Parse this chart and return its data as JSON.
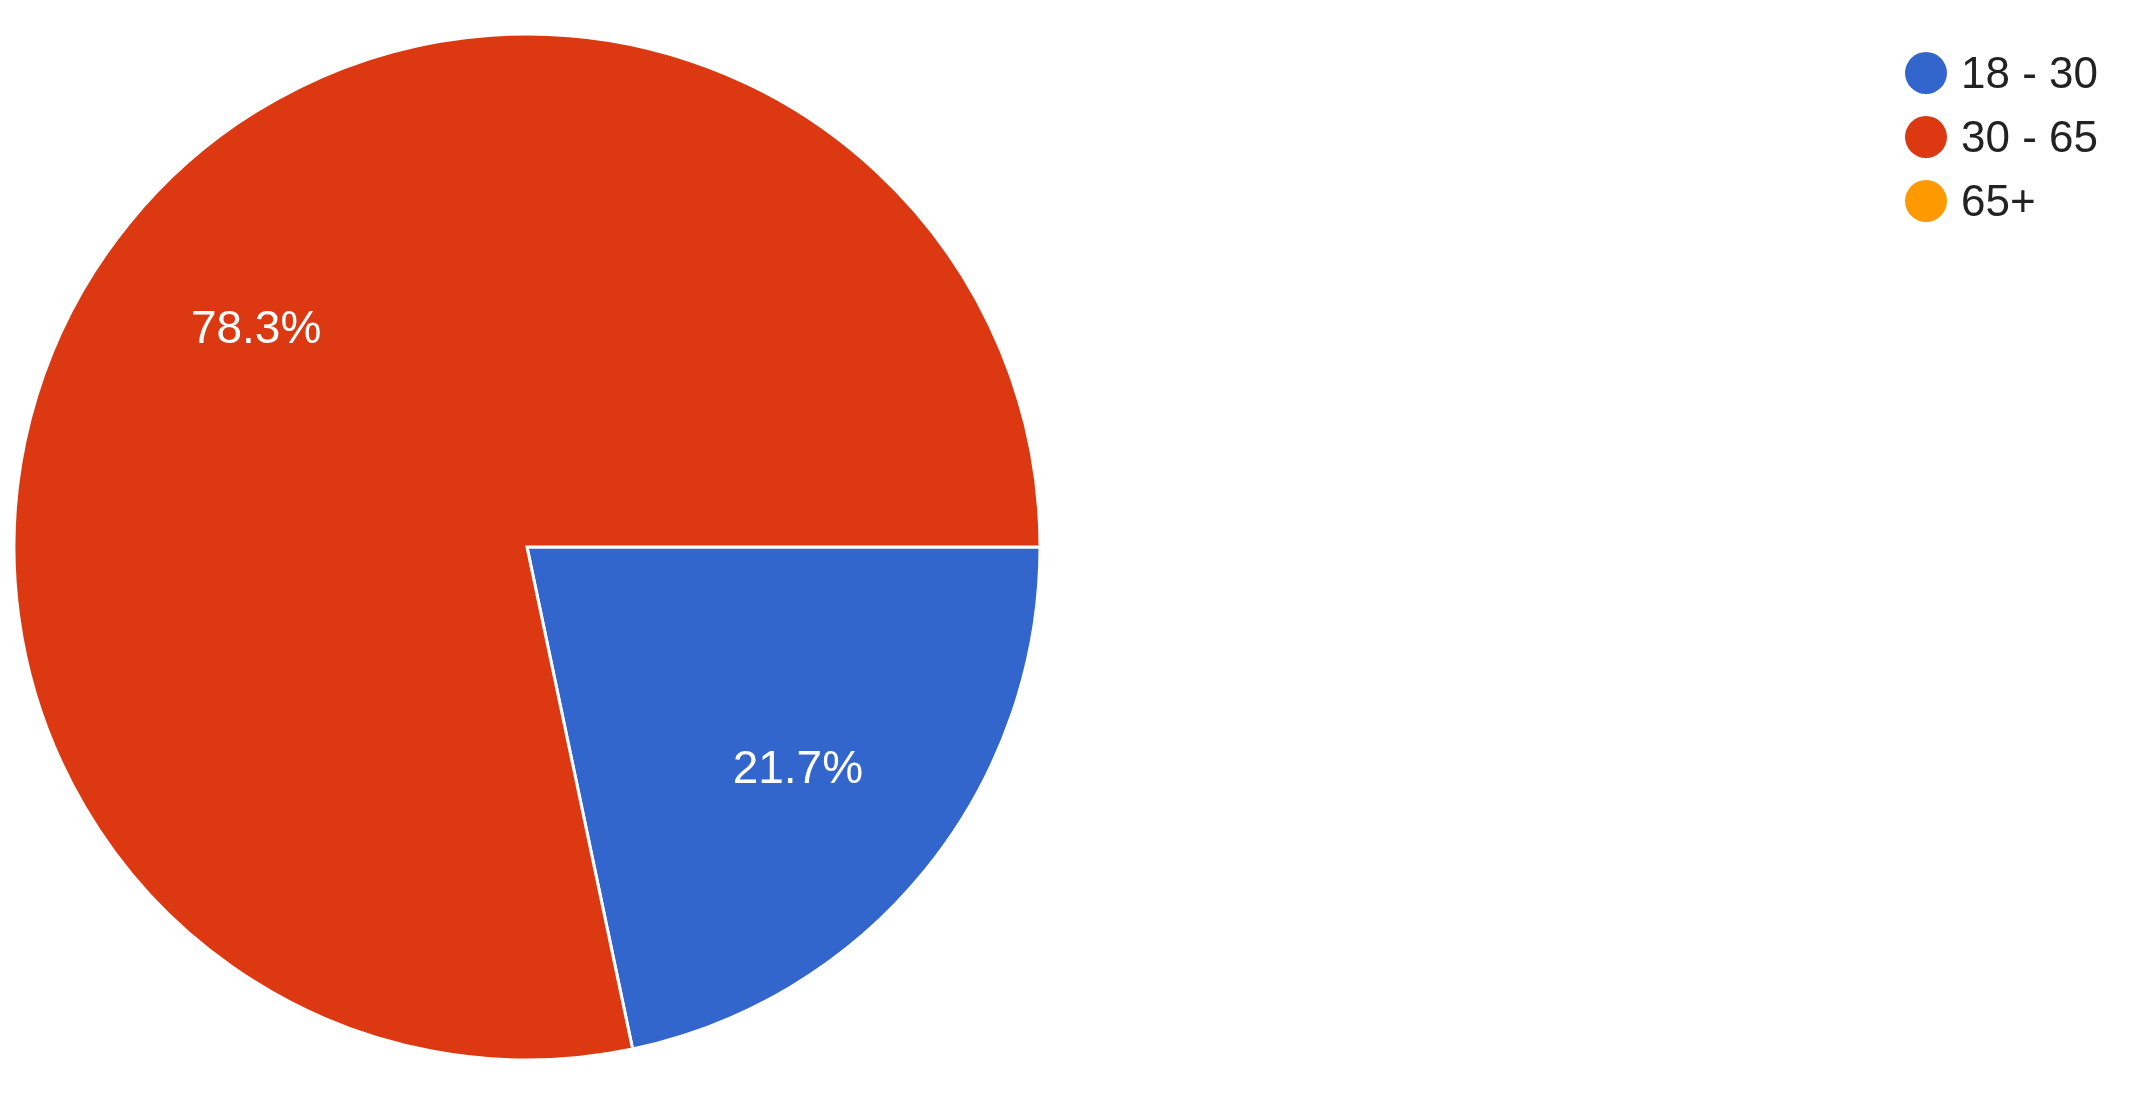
{
  "chart_data": {
    "type": "pie",
    "categories": [
      "18 - 30",
      "30 - 65",
      "65+"
    ],
    "values": [
      21.7,
      78.3,
      0
    ],
    "colors": [
      "#3366cc",
      "#dc3912",
      "#ff9900"
    ],
    "value_labels": [
      "21.7%",
      "78.3%",
      null
    ],
    "legend": "top right"
  }
}
